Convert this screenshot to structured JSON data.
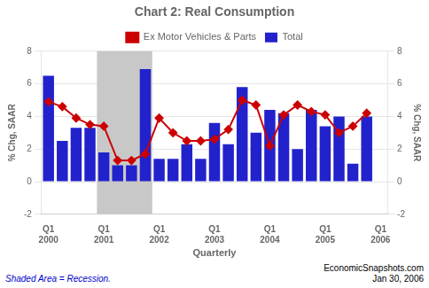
{
  "chart_data": {
    "type": "bar",
    "title": "Chart 2: Real Consumption",
    "x_label": "Quarterly",
    "y_label": "% Chg, SAAR",
    "y2_label": "% Chg, SAAR",
    "categories": [
      "Q1 2000",
      null,
      null,
      null,
      "Q1 2001",
      null,
      null,
      null,
      "Q1 2002",
      null,
      null,
      null,
      "Q1 2003",
      null,
      null,
      null,
      "Q1 2004",
      null,
      null,
      null,
      "Q1 2005",
      null,
      null,
      null,
      "Q1 2006"
    ],
    "series": [
      {
        "name": "Total",
        "type": "bar",
        "color": "#2222cc",
        "values": [
          6.5,
          2.5,
          3.3,
          3.3,
          1.8,
          1.0,
          1.0,
          6.9,
          1.4,
          1.4,
          2.3,
          1.4,
          3.6,
          2.3,
          5.8,
          3.0,
          4.4,
          4.2,
          2.0,
          4.4,
          3.4,
          4.0,
          1.1,
          4.0,
          null
        ]
      },
      {
        "name": "Ex Motor Vehicles & Parts",
        "type": "line",
        "color": "#cc0000",
        "marker": "diamond",
        "values": [
          4.9,
          4.6,
          3.9,
          3.5,
          3.4,
          1.3,
          1.3,
          1.7,
          3.9,
          3.0,
          2.5,
          2.5,
          2.6,
          3.2,
          5.0,
          4.7,
          2.2,
          4.1,
          4.7,
          4.3,
          4.1,
          3.0,
          3.4,
          4.2,
          null
        ]
      }
    ],
    "ylim": [
      -2,
      8
    ],
    "yticks": [
      -2,
      0,
      2,
      4,
      6,
      8
    ],
    "y2lim": [
      -2,
      8
    ],
    "y2ticks": [
      -2,
      0,
      2,
      4,
      6,
      8
    ],
    "grid": true,
    "legend": "top",
    "shaded_range": {
      "start_index": 4,
      "end_index": 7,
      "color": "#c8c8c8"
    },
    "annotations": [
      {
        "text": [
          "Shaded Area = Recession."
        ],
        "color": "#0000cc"
      },
      {
        "text": [
          "EconomicSnapshots.com",
          "Jan 30, 2006"
        ]
      }
    ]
  }
}
